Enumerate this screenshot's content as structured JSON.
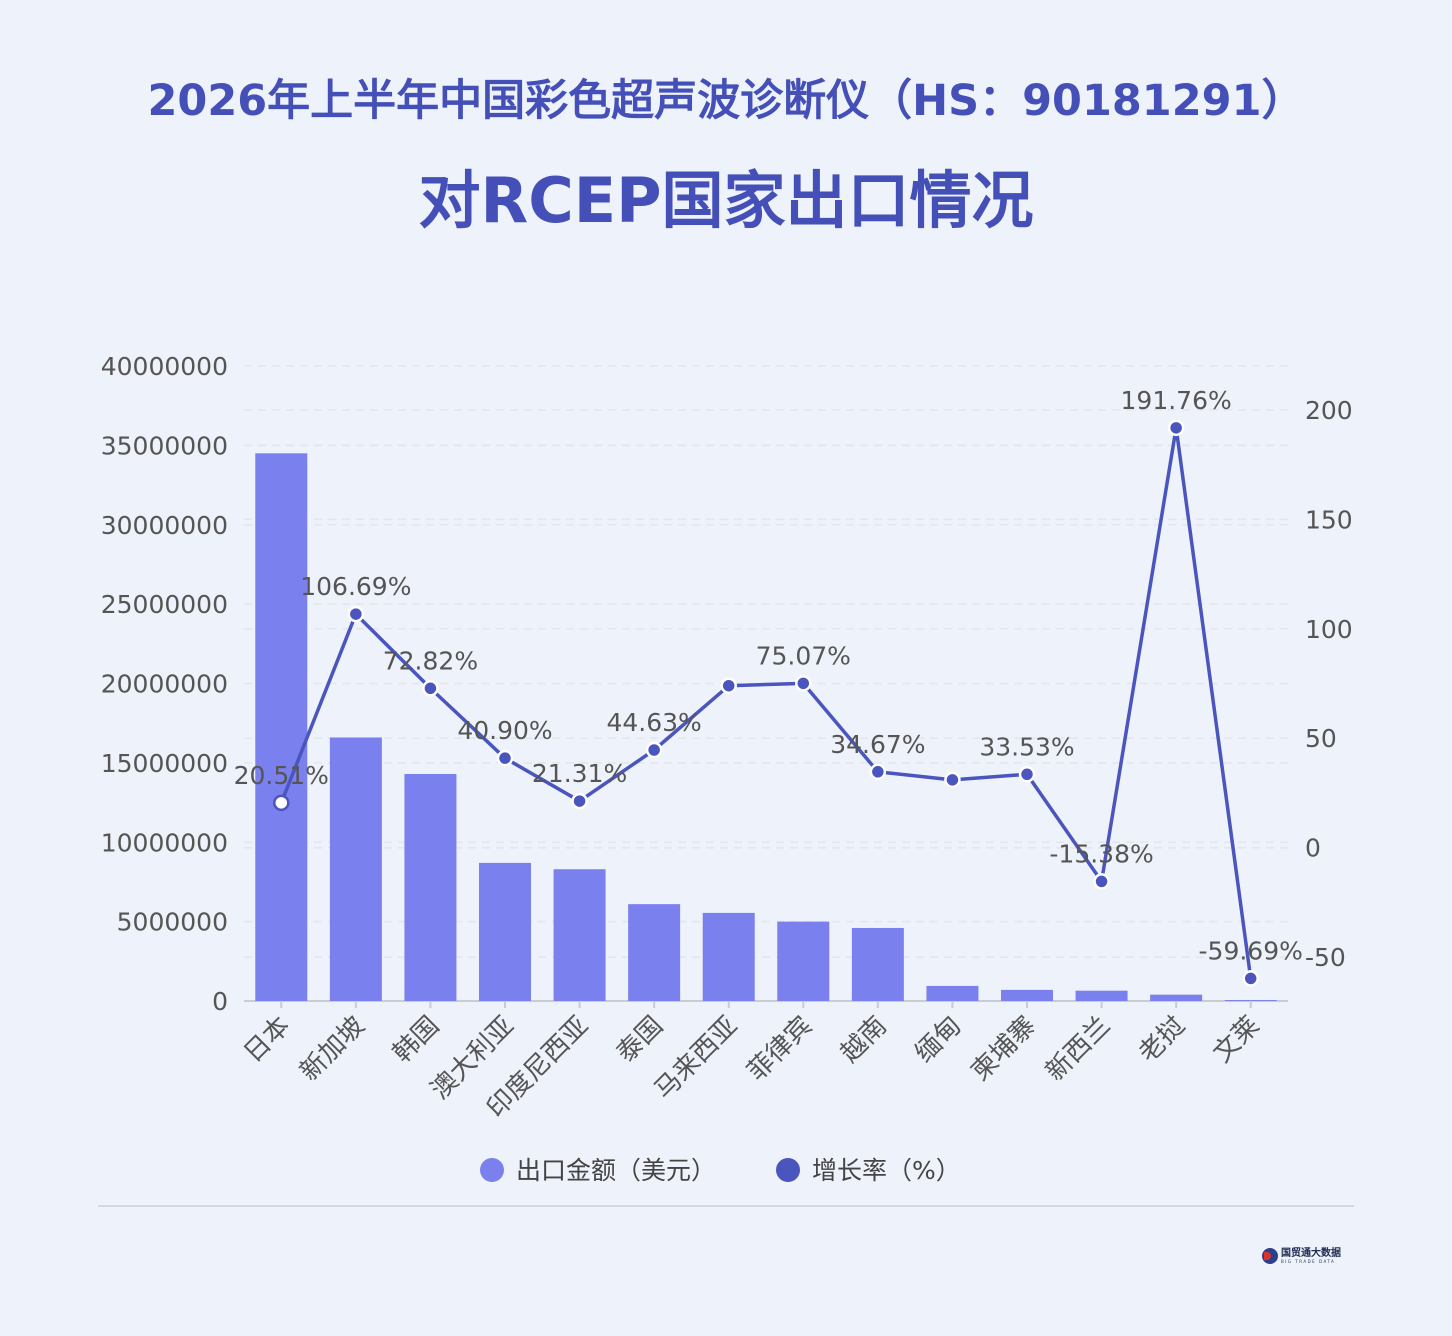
{
  "title": {
    "line1": "2026年上半年中国彩色超声波诊断仪（HS：90181291）",
    "line2": "对RCEP国家出口情况"
  },
  "colors": {
    "title": "#4450b8",
    "bar": "#7a80ee",
    "line": "#4a55bd",
    "axis_text": "#555555",
    "grid": "#e3e6ea"
  },
  "chart_data": {
    "type": "bar",
    "categories": [
      "日本",
      "新加坡",
      "韩国",
      "澳大利亚",
      "印度尼西亚",
      "泰国",
      "马来西亚",
      "菲律宾",
      "越南",
      "缅甸",
      "柬埔寨",
      "新西兰",
      "老挝",
      "文莱"
    ],
    "series": [
      {
        "name": "出口金额（美元）",
        "type": "bar",
        "axis": "left",
        "values": [
          34500000,
          16600000,
          14300000,
          8700000,
          8300000,
          6100000,
          5550000,
          5000000,
          4600000,
          950000,
          700000,
          650000,
          400000,
          60000
        ]
      },
      {
        "name": "增长率（%）",
        "type": "line",
        "axis": "right",
        "values": [
          20.51,
          106.69,
          72.82,
          40.9,
          21.31,
          44.63,
          74.0,
          75.07,
          34.67,
          31.0,
          33.53,
          -15.38,
          191.76,
          -59.69
        ],
        "labels": [
          "20.51%",
          "106.69%",
          "72.82%",
          "40.90%",
          "21.31%",
          "44.63%",
          "",
          "75.07%",
          "34.67%",
          "",
          "33.53%",
          "-15.38%",
          "191.76%",
          "-59.69%"
        ]
      }
    ],
    "y_left": {
      "ylim": [
        0,
        40000000
      ],
      "ticks": [
        "0",
        "5000000",
        "10000000",
        "15000000",
        "20000000",
        "25000000",
        "30000000",
        "35000000",
        "40000000"
      ]
    },
    "y_right": {
      "ylim": [
        -70,
        220
      ],
      "ticks": [
        "-50",
        "0",
        "50",
        "100",
        "150",
        "200"
      ]
    },
    "grid": true,
    "legend_position": "bottom"
  },
  "legend": [
    {
      "label": "出口金额（美元）",
      "color": "#7a80ee"
    },
    {
      "label": "增长率（%）",
      "color": "#4a55bd"
    }
  ],
  "logo": {
    "name": "国贸通大数据",
    "subtitle": "BIG TRADE DATA"
  }
}
